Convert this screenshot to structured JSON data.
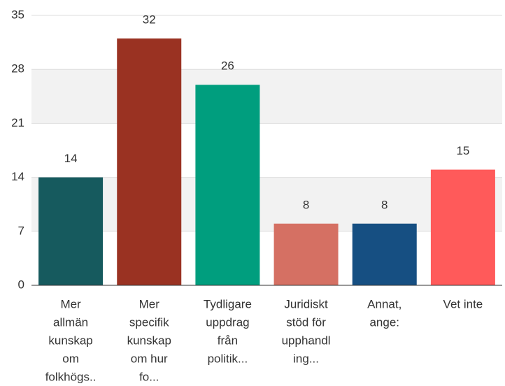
{
  "chart_data": {
    "type": "bar",
    "categories": [
      [
        "Mer",
        "allmän",
        "kunskap",
        "om",
        "folkhögs.."
      ],
      [
        "Mer",
        "specifik",
        "kunskap",
        "om hur",
        "fo..."
      ],
      [
        "Tydligare",
        "uppdrag",
        "från",
        "politik..."
      ],
      [
        "Juridiskt",
        "stöd för",
        "upphandl",
        "ing..."
      ],
      [
        "Annat,",
        "ange:"
      ],
      [
        "Vet inte"
      ]
    ],
    "values": [
      14,
      32,
      26,
      8,
      8,
      15
    ],
    "colors": [
      "#165a5e",
      "#9a3222",
      "#009e7e",
      "#d57063",
      "#164f82",
      "#ff5a5a"
    ],
    "ylim": [
      0,
      35
    ],
    "yticks": [
      0,
      7,
      14,
      21,
      28,
      35
    ],
    "grid": true
  }
}
